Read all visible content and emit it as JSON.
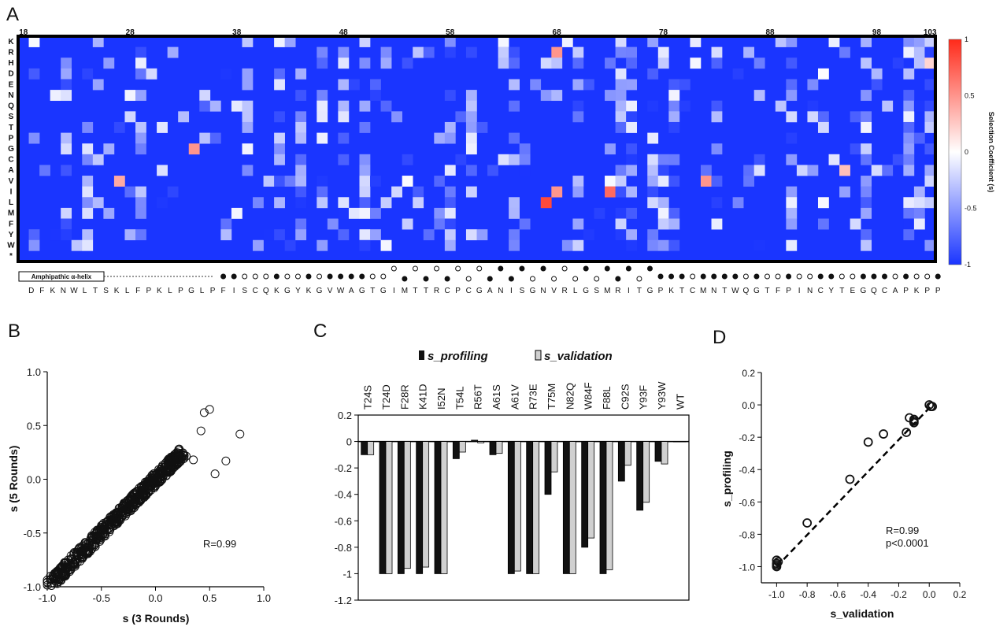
{
  "panel_labels": {
    "a": "A",
    "b": "B",
    "c": "C",
    "d": "D"
  },
  "chart_data": [
    {
      "type": "heatmap",
      "panel": "A",
      "rows": [
        "K",
        "R",
        "H",
        "D",
        "E",
        "N",
        "Q",
        "S",
        "T",
        "P",
        "G",
        "C",
        "A",
        "V",
        "I",
        "L",
        "M",
        "F",
        "Y",
        "W",
        "*"
      ],
      "position_labels": [
        "18",
        "28",
        "38",
        "48",
        "58",
        "68",
        "78",
        "88",
        "98",
        "103"
      ],
      "positions_start": 18,
      "positions_end": 103,
      "sequence": [
        "D",
        "F",
        "K",
        "N",
        "W",
        "L",
        "T",
        "S",
        "K",
        "L",
        "F",
        "P",
        "K",
        "L",
        "P",
        "G",
        "L",
        "P",
        "F",
        "I",
        "S",
        "C",
        "Q",
        "K",
        "G",
        "Y",
        "K",
        "G",
        "V",
        "W",
        "A",
        "G",
        "T",
        "G",
        "I",
        "M",
        "T",
        "T",
        "R",
        "C",
        "P",
        "C",
        "G",
        "A",
        "N",
        "I",
        "S",
        "G",
        "N",
        "V",
        "R",
        "L",
        "G",
        "S",
        "M",
        "R",
        "I",
        "T",
        "G",
        "P",
        "K",
        "T",
        "C",
        "M",
        "N",
        "T",
        "W",
        "Q",
        "G",
        "T",
        "F",
        "P",
        "I",
        "N",
        "C",
        "Y",
        "T",
        "E",
        "G",
        "Q",
        "C",
        "A",
        "P",
        "K",
        "P",
        "P"
      ],
      "helix_label": "Amphipathic α-helix",
      "colorbar": {
        "label": "Selection Coefficient (s)",
        "ticks": [
          "1",
          "0.5",
          "0",
          "-0.5",
          "-1"
        ],
        "colors": {
          "high": "#ff2a1a",
          "mid": "#ffffff",
          "low": "#1a35ff"
        }
      },
      "value_range": [
        -1,
        1
      ]
    },
    {
      "type": "scatter",
      "panel": "B",
      "xlabel": "s (3 Rounds)",
      "ylabel": "s (5 Rounds)",
      "xlim": [
        -1.0,
        1.0
      ],
      "ylim": [
        -1.0,
        1.0
      ],
      "xticks": [
        "-1.0",
        "-0.5",
        "0.0",
        "0.5",
        "1.0"
      ],
      "yticks": [
        "-1.0",
        "-0.5",
        "0.0",
        "0.5",
        "1.0"
      ],
      "annotation": "R=0.99",
      "note": "~700 hollow circles tightly along y = x"
    },
    {
      "type": "bar",
      "panel": "C",
      "categories": [
        "T24S",
        "T24D",
        "F28R",
        "K41D",
        "I52N",
        "T54L",
        "R56T",
        "A61S",
        "A61V",
        "R73E",
        "T75M",
        "N82Q",
        "W84F",
        "F88L",
        "C92S",
        "Y93F",
        "Y93W",
        "WT"
      ],
      "series": [
        {
          "name": "s_profiling",
          "color": "#111111",
          "values": [
            -0.1,
            -1.0,
            -1.0,
            -1.0,
            -1.0,
            -0.13,
            0.01,
            -0.1,
            -1.0,
            -1.0,
            -0.4,
            -1.0,
            -0.8,
            -1.0,
            -0.3,
            -0.52,
            -0.15,
            0.0
          ]
        },
        {
          "name": "s_validation",
          "color": "#d0d0d0",
          "values": [
            -0.1,
            -1.0,
            -0.96,
            -0.95,
            -1.0,
            -0.08,
            -0.01,
            -0.09,
            -0.98,
            -1.0,
            -0.23,
            -1.0,
            -0.73,
            -0.97,
            -0.18,
            -0.46,
            -0.17,
            0.0
          ]
        }
      ],
      "ylim": [
        -1.2,
        0.2
      ],
      "yticks": [
        "0.2",
        "0",
        "-0.2",
        "-0.4",
        "-0.6",
        "-0.8",
        "-1",
        "-1.2"
      ],
      "legend": [
        "s_profiling",
        "s_validation"
      ]
    },
    {
      "type": "scatter",
      "panel": "D",
      "xlabel": "s_validation",
      "ylabel": "s_profiling",
      "xlim": [
        -1.1,
        0.2
      ],
      "ylim": [
        -1.1,
        0.2
      ],
      "xticks": [
        "-1.0",
        "-0.8",
        "-0.6",
        "-0.4",
        "-0.2",
        "0.0",
        "0.2"
      ],
      "yticks": [
        "0.2",
        "0.0",
        "-0.2",
        "-0.4",
        "-0.6",
        "-0.8",
        "-1.0"
      ],
      "points": [
        {
          "x": -1.0,
          "y": -1.0
        },
        {
          "x": -1.0,
          "y": -0.98
        },
        {
          "x": -1.0,
          "y": -0.96
        },
        {
          "x": -0.99,
          "y": -0.97
        },
        {
          "x": -1.0,
          "y": -0.99
        },
        {
          "x": -0.8,
          "y": -0.73
        },
        {
          "x": -0.52,
          "y": -0.46
        },
        {
          "x": -0.4,
          "y": -0.23
        },
        {
          "x": -0.3,
          "y": -0.18
        },
        {
          "x": -0.15,
          "y": -0.17
        },
        {
          "x": -0.13,
          "y": -0.08
        },
        {
          "x": -0.1,
          "y": -0.09
        },
        {
          "x": -0.1,
          "y": -0.1
        },
        {
          "x": -0.1,
          "y": -0.11
        },
        {
          "x": 0.0,
          "y": 0.0
        },
        {
          "x": 0.01,
          "y": -0.01
        },
        {
          "x": 0.02,
          "y": -0.01
        }
      ],
      "fit_line": [
        [
          -1.0,
          -1.0
        ],
        [
          0.02,
          0.0
        ]
      ],
      "annotation": [
        "R=0.99",
        "p<0.0001"
      ]
    }
  ]
}
